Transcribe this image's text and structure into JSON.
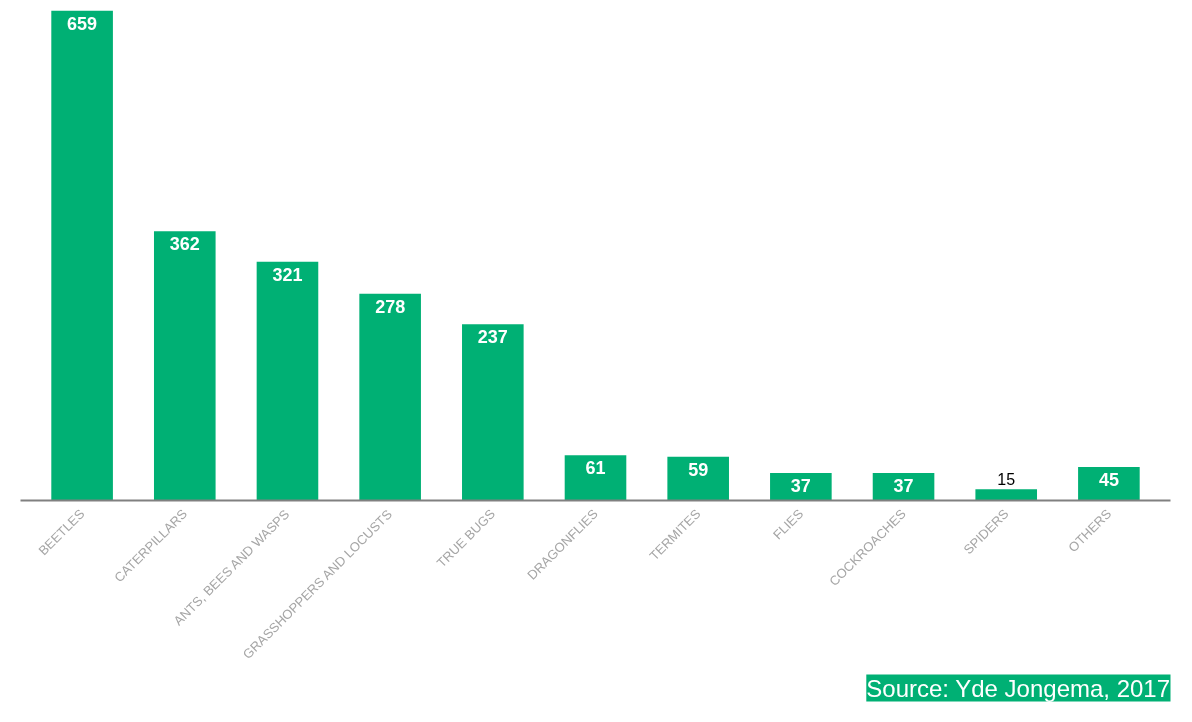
{
  "chart_data": {
    "type": "bar",
    "categories": [
      "BEETLES",
      "CATERPILLARS",
      "ANTS, BEES AND WASPS",
      "GRASSHOPPERS AND LOCUSTS",
      "TRUE BUGS",
      "DRAGONFLIES",
      "TERMITES",
      "FLIES",
      "COCKROACHES",
      "SPIDERS",
      "OTHERS"
    ],
    "values": [
      659,
      362,
      321,
      278,
      237,
      61,
      59,
      37,
      37,
      15,
      45
    ],
    "color": "#00b074",
    "data_labels": true,
    "grid": false,
    "annotations": [
      "Source: Yde Jongema, 2017"
    ]
  }
}
